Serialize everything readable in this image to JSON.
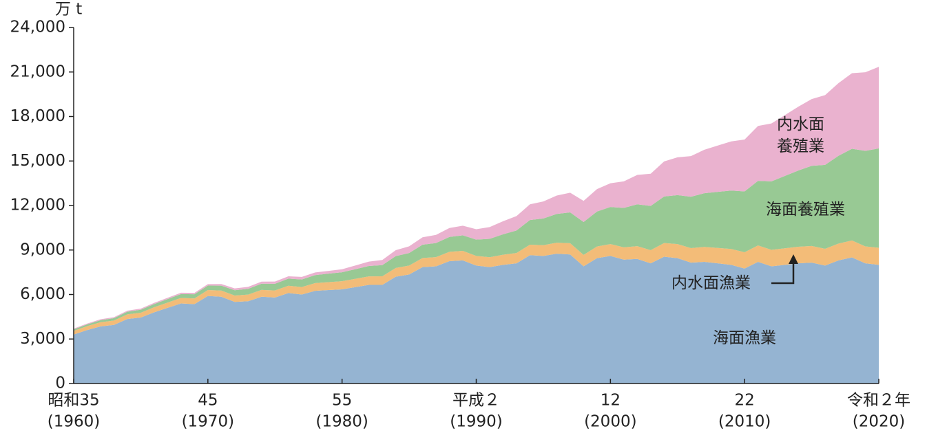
{
  "chart_data": {
    "type": "stacked-area",
    "y_unit": "万 t",
    "x": [
      1960,
      1961,
      1962,
      1963,
      1964,
      1965,
      1966,
      1967,
      1968,
      1969,
      1970,
      1971,
      1972,
      1973,
      1974,
      1975,
      1976,
      1977,
      1978,
      1979,
      1980,
      1981,
      1982,
      1983,
      1984,
      1985,
      1986,
      1987,
      1988,
      1989,
      1990,
      1991,
      1992,
      1993,
      1994,
      1995,
      1996,
      1997,
      1998,
      1999,
      2000,
      2001,
      2002,
      2003,
      2004,
      2005,
      2006,
      2007,
      2008,
      2009,
      2010,
      2011,
      2012,
      2013,
      2014,
      2015,
      2016,
      2017,
      2018,
      2019,
      2020
    ],
    "xlim": [
      1960,
      2020
    ],
    "xticks": [
      {
        "value": 1960,
        "label": [
          "昭和35",
          "(1960)"
        ]
      },
      {
        "value": 1970,
        "label": [
          "45",
          "(1970)"
        ]
      },
      {
        "value": 1980,
        "label": [
          "55",
          "(1980)"
        ]
      },
      {
        "value": 1990,
        "label": [
          "平成２",
          "(1990)"
        ]
      },
      {
        "value": 2000,
        "label": [
          "12",
          "(2000)"
        ]
      },
      {
        "value": 2010,
        "label": [
          "22",
          "(2010)"
        ]
      },
      {
        "value": 2020,
        "label": [
          "令和２年",
          "(2020)"
        ]
      }
    ],
    "ylim": [
      0,
      24000
    ],
    "yticks": [
      {
        "value": 0,
        "label": "0"
      },
      {
        "value": 3000,
        "label": "3,000"
      },
      {
        "value": 6000,
        "label": "6,000"
      },
      {
        "value": 9000,
        "label": "9,000"
      },
      {
        "value": 12000,
        "label": "12,000"
      },
      {
        "value": 15000,
        "label": "15,000"
      },
      {
        "value": 18000,
        "label": "18,000"
      },
      {
        "value": 21000,
        "label": "21,000"
      },
      {
        "value": 24000,
        "label": "24,000"
      }
    ],
    "series": [
      {
        "name": "海面漁業",
        "color": "#95b4d2",
        "values": [
          3300,
          3600,
          3850,
          3950,
          4350,
          4450,
          4800,
          5100,
          5400,
          5350,
          5900,
          5850,
          5500,
          5550,
          5850,
          5800,
          6100,
          6000,
          6250,
          6300,
          6350,
          6500,
          6650,
          6650,
          7200,
          7350,
          7850,
          7900,
          8250,
          8300,
          7950,
          7850,
          8000,
          8100,
          8650,
          8600,
          8750,
          8700,
          7900,
          8450,
          8600,
          8350,
          8400,
          8100,
          8550,
          8450,
          8150,
          8200,
          8100,
          8000,
          7750,
          8200,
          7900,
          8000,
          8100,
          8150,
          7950,
          8300,
          8500,
          8100,
          8000
        ]
      },
      {
        "name": "内水面漁業",
        "color": "#f3bc78",
        "values": [
          250,
          265,
          280,
          295,
          310,
          325,
          340,
          355,
          370,
          385,
          400,
          415,
          430,
          445,
          460,
          475,
          490,
          505,
          520,
          535,
          550,
          560,
          570,
          580,
          590,
          600,
          610,
          620,
          630,
          640,
          650,
          665,
          680,
          695,
          710,
          725,
          740,
          755,
          770,
          785,
          800,
          830,
          860,
          890,
          920,
          950,
          980,
          1010,
          1040,
          1070,
          1100,
          1105,
          1110,
          1115,
          1120,
          1125,
          1130,
          1135,
          1140,
          1145,
          1150
        ]
      },
      {
        "name": "海面養殖業",
        "color": "#98c994",
        "values": [
          100,
          120,
          140,
          160,
          180,
          200,
          220,
          240,
          260,
          280,
          300,
          330,
          360,
          390,
          420,
          450,
          480,
          510,
          540,
          570,
          600,
          650,
          700,
          750,
          800,
          850,
          900,
          950,
          1000,
          1050,
          1100,
          1240,
          1380,
          1520,
          1660,
          1800,
          1940,
          2080,
          2220,
          2360,
          2500,
          2660,
          2820,
          2980,
          3140,
          3300,
          3460,
          3620,
          3780,
          3940,
          4100,
          4360,
          4620,
          4880,
          5140,
          5400,
          5660,
          5920,
          6180,
          6440,
          6700
        ]
      },
      {
        "name": "内水面養殖業",
        "color": "#eab2cf",
        "values": [
          50,
          55,
          60,
          65,
          70,
          75,
          80,
          85,
          90,
          95,
          100,
          110,
          120,
          130,
          140,
          150,
          160,
          170,
          180,
          190,
          200,
          250,
          300,
          350,
          400,
          450,
          500,
          550,
          600,
          650,
          700,
          790,
          880,
          970,
          1060,
          1150,
          1240,
          1330,
          1420,
          1510,
          1600,
          1790,
          1980,
          2170,
          2360,
          2550,
          2740,
          2930,
          3120,
          3310,
          3500,
          3700,
          3900,
          4100,
          4300,
          4500,
          4700,
          4900,
          5100,
          5300,
          5500
        ]
      }
    ]
  }
}
